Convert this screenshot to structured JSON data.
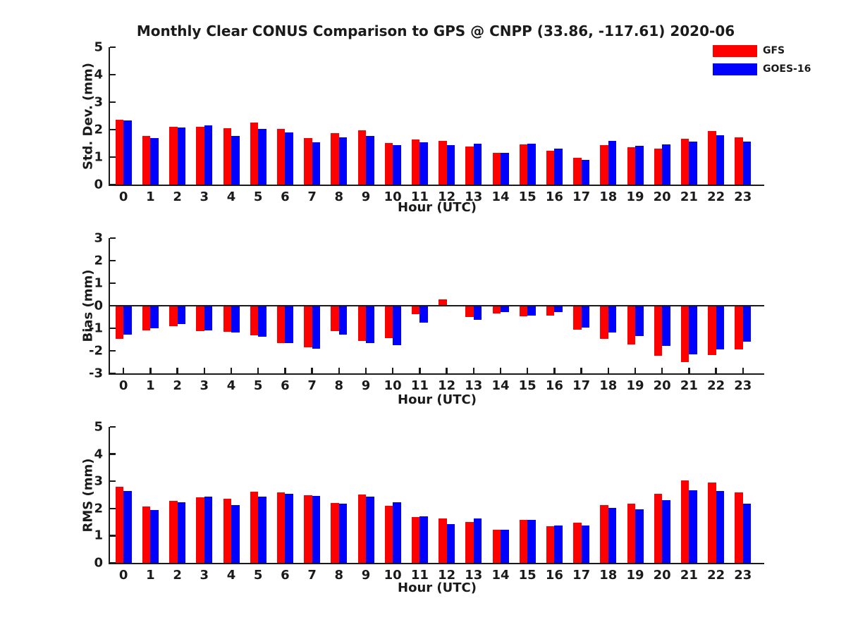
{
  "title": "Monthly Clear CONUS Comparison to GPS @ CNPP (33.86, -117.61) 2020-06",
  "legend": {
    "position": "top-right",
    "entries": [
      {
        "label": "GFS",
        "color": "#ff0000"
      },
      {
        "label": "GOES-16",
        "color": "#0000ff"
      }
    ]
  },
  "colors": {
    "gfs": "#ff0000",
    "goes16": "#0000ff",
    "axis": "#1a1a1a",
    "background": "#ffffff"
  },
  "chart_data": [
    {
      "type": "bar",
      "title": "",
      "ylabel": "Std. Dev. (mm)",
      "xlabel": "Hour (UTC)",
      "ylim": [
        0,
        5
      ],
      "yticks": [
        0,
        1,
        2,
        3,
        4,
        5
      ],
      "grid": false,
      "categories": [
        0,
        1,
        2,
        3,
        4,
        5,
        6,
        7,
        8,
        9,
        10,
        11,
        12,
        13,
        14,
        15,
        16,
        17,
        18,
        19,
        20,
        21,
        22,
        23
      ],
      "series": [
        {
          "name": "GFS",
          "color": "#ff0000",
          "values": [
            2.37,
            1.78,
            2.1,
            2.1,
            2.05,
            2.26,
            2.03,
            1.7,
            1.88,
            1.97,
            1.52,
            1.65,
            1.59,
            1.38,
            1.16,
            1.46,
            1.24,
            0.97,
            1.43,
            1.35,
            1.31,
            1.67,
            1.94,
            1.72
          ]
        },
        {
          "name": "GOES-16",
          "color": "#0000ff",
          "values": [
            2.33,
            1.68,
            2.07,
            2.15,
            1.77,
            2.03,
            1.9,
            1.55,
            1.73,
            1.77,
            1.43,
            1.55,
            1.44,
            1.49,
            1.16,
            1.49,
            1.3,
            0.91,
            1.6,
            1.41,
            1.46,
            1.57,
            1.8,
            1.56
          ]
        }
      ]
    },
    {
      "type": "bar",
      "title": "",
      "ylabel": "Bias (mm)",
      "xlabel": "Hour (UTC)",
      "ylim": [
        -3,
        3
      ],
      "yticks": [
        -3,
        -2,
        -1,
        0,
        1,
        2,
        3
      ],
      "grid": false,
      "zero_line": true,
      "categories": [
        0,
        1,
        2,
        3,
        4,
        5,
        6,
        7,
        8,
        9,
        10,
        11,
        12,
        13,
        14,
        15,
        16,
        17,
        18,
        19,
        20,
        21,
        22,
        23
      ],
      "series": [
        {
          "name": "GFS",
          "color": "#ff0000",
          "values": [
            -1.47,
            -1.1,
            -0.9,
            -1.13,
            -1.15,
            -1.3,
            -1.65,
            -1.85,
            -1.13,
            -1.55,
            -1.45,
            -0.38,
            0.28,
            -0.5,
            -0.33,
            -0.47,
            -0.43,
            -1.05,
            -1.46,
            -1.73,
            -2.21,
            -2.5,
            -2.2,
            -1.94
          ]
        },
        {
          "name": "GOES-16",
          "color": "#0000ff",
          "values": [
            -1.27,
            -1.0,
            -0.8,
            -1.1,
            -1.2,
            -1.38,
            -1.67,
            -1.92,
            -1.27,
            -1.67,
            -1.75,
            -0.75,
            -0.04,
            -0.64,
            -0.28,
            -0.43,
            -0.27,
            -0.97,
            -1.2,
            -1.35,
            -1.78,
            -2.15,
            -1.94,
            -1.58
          ]
        }
      ]
    },
    {
      "type": "bar",
      "title": "",
      "ylabel": "RMS (mm)",
      "xlabel": "Hour (UTC)",
      "ylim": [
        0,
        5
      ],
      "yticks": [
        0,
        1,
        2,
        3,
        4,
        5
      ],
      "grid": false,
      "categories": [
        0,
        1,
        2,
        3,
        4,
        5,
        6,
        7,
        8,
        9,
        10,
        11,
        12,
        13,
        14,
        15,
        16,
        17,
        18,
        19,
        20,
        21,
        22,
        23
      ],
      "series": [
        {
          "name": "GFS",
          "color": "#ff0000",
          "values": [
            2.8,
            2.07,
            2.27,
            2.41,
            2.36,
            2.61,
            2.59,
            2.49,
            2.19,
            2.52,
            2.09,
            1.68,
            1.64,
            1.5,
            1.23,
            1.57,
            1.34,
            1.47,
            2.13,
            2.17,
            2.54,
            3.02,
            2.95,
            2.59
          ]
        },
        {
          "name": "GOES-16",
          "color": "#0000ff",
          "values": [
            2.63,
            1.94,
            2.22,
            2.43,
            2.13,
            2.43,
            2.53,
            2.47,
            2.17,
            2.43,
            2.23,
            1.71,
            1.42,
            1.64,
            1.23,
            1.59,
            1.37,
            1.38,
            2.01,
            1.96,
            2.3,
            2.66,
            2.63,
            2.18
          ]
        }
      ]
    }
  ]
}
